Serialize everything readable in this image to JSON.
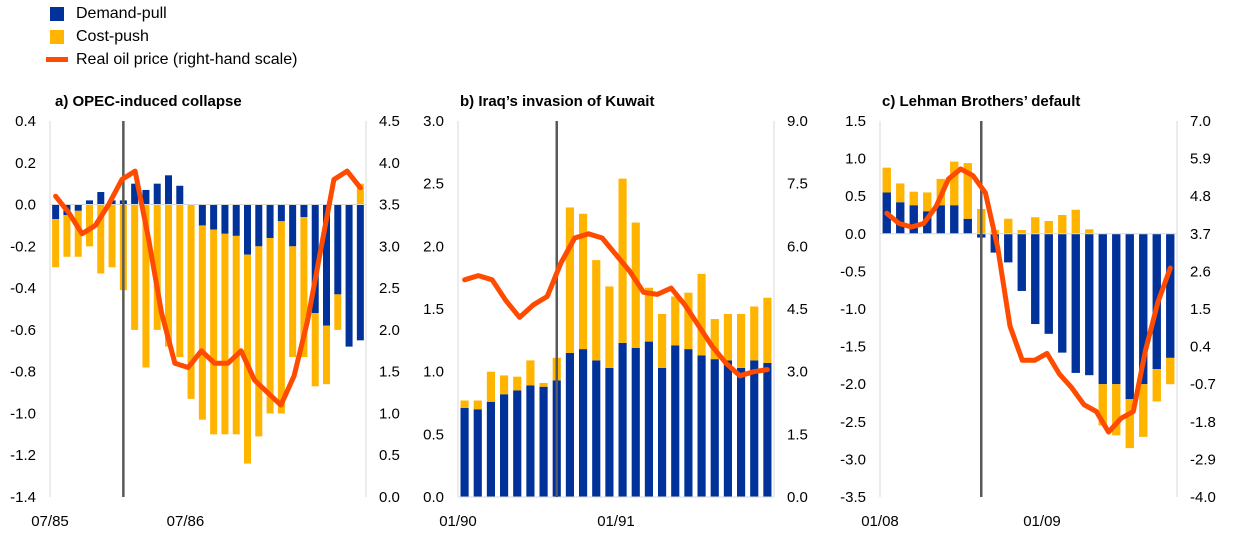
{
  "legend": {
    "items": [
      {
        "label": "Demand-pull",
        "color": "#003299",
        "kind": "bar"
      },
      {
        "label": "Cost-push",
        "color": "#FFB400",
        "kind": "bar"
      },
      {
        "label": "Real oil price (right-hand scale)",
        "color": "#FF4B00",
        "kind": "line"
      }
    ]
  },
  "colors": {
    "demand": "#003299",
    "cost": "#FFB400",
    "oil": "#FF4B00",
    "event_line": "#595959"
  },
  "chart_data": [
    {
      "type": "bar",
      "title": "a) OPEC-induced collapse",
      "ylim": [
        -1.4,
        0.4
      ],
      "yticks": [
        "0.4",
        "0.2",
        "0.0",
        "-0.2",
        "-0.4",
        "-0.6",
        "-0.8",
        "-1.0",
        "-1.2",
        "-1.4"
      ],
      "y2lim": [
        0.0,
        4.5
      ],
      "y2ticks": [
        "4.5",
        "4.0",
        "3.5",
        "3.0",
        "2.5",
        "2.0",
        "1.5",
        "1.0",
        "0.5",
        "0.0"
      ],
      "x_tick_labels": [
        {
          "label": "07/85",
          "index": 0
        },
        {
          "label": "07/86",
          "index": 12
        }
      ],
      "event_index": 6.5,
      "series": [
        {
          "name": "Demand-pull",
          "values": [
            -0.07,
            -0.05,
            -0.03,
            0.02,
            0.06,
            0.02,
            0.02,
            0.1,
            0.07,
            0.1,
            0.14,
            0.09,
            0.0,
            -0.1,
            -0.12,
            -0.14,
            -0.15,
            -0.24,
            -0.2,
            -0.16,
            -0.08,
            -0.2,
            -0.06,
            -0.52,
            -0.58,
            -0.43,
            -0.68,
            -0.65
          ]
        },
        {
          "name": "Cost-push",
          "values": [
            -0.23,
            -0.2,
            -0.22,
            -0.2,
            -0.33,
            -0.3,
            -0.41,
            -0.6,
            -0.78,
            -0.6,
            -0.68,
            -0.73,
            -0.93,
            -0.93,
            -0.98,
            -0.96,
            -0.95,
            -1.0,
            -0.91,
            -0.84,
            -0.92,
            -0.53,
            -0.67,
            -0.35,
            -0.28,
            -0.17,
            0.0,
            0.1
          ]
        },
        {
          "name": "Real oil price (right-hand scale)",
          "values": [
            3.6,
            3.4,
            3.15,
            3.25,
            3.5,
            3.8,
            3.9,
            3.1,
            2.2,
            1.6,
            1.55,
            1.75,
            1.6,
            1.6,
            1.75,
            1.4,
            1.25,
            1.1,
            1.45,
            2.1,
            2.95,
            3.8,
            3.9,
            3.7
          ]
        }
      ]
    },
    {
      "type": "bar",
      "title": "b) Iraq’s invasion of Kuwait",
      "ylim": [
        0.0,
        3.0
      ],
      "yticks": [
        "3.0",
        "2.5",
        "2.0",
        "1.5",
        "1.0",
        "0.5",
        "0.0"
      ],
      "y2lim": [
        0.0,
        9.0
      ],
      "y2ticks": [
        "9.0",
        "7.5",
        "6.0",
        "4.5",
        "3.0",
        "1.5",
        "0.0"
      ],
      "x_tick_labels": [
        {
          "label": "01/90",
          "index": 0
        },
        {
          "label": "01/91",
          "index": 12
        }
      ],
      "event_index": 7.5,
      "series": [
        {
          "name": "Demand-pull",
          "values": [
            0.71,
            0.7,
            0.76,
            0.82,
            0.85,
            0.89,
            0.88,
            0.93,
            1.15,
            1.18,
            1.09,
            1.03,
            1.23,
            1.19,
            1.24,
            1.03,
            1.21,
            1.18,
            1.13,
            1.1,
            1.09,
            1.03,
            1.09,
            1.07
          ]
        },
        {
          "name": "Cost-push",
          "values": [
            0.06,
            0.07,
            0.24,
            0.15,
            0.11,
            0.2,
            0.03,
            0.18,
            1.16,
            1.08,
            0.8,
            0.65,
            1.31,
            1.0,
            0.43,
            0.43,
            0.39,
            0.45,
            0.65,
            0.32,
            0.37,
            0.43,
            0.43,
            0.52
          ]
        },
        {
          "name": "Real oil price (right-hand scale)",
          "values": [
            5.2,
            5.3,
            5.2,
            4.7,
            4.3,
            4.6,
            4.8,
            5.6,
            6.2,
            6.3,
            6.2,
            5.8,
            5.4,
            4.9,
            4.85,
            5.0,
            4.6,
            4.1,
            3.6,
            3.2,
            2.9,
            3.0,
            3.05
          ]
        }
      ]
    },
    {
      "type": "bar",
      "title": "c) Lehman Brothers’ default",
      "ylim": [
        -3.5,
        1.5
      ],
      "yticks": [
        "1.5",
        "1.0",
        "0.5",
        "0.0",
        "-0.5",
        "-1.0",
        "-1.5",
        "-2.0",
        "-2.5",
        "-3.0",
        "-3.5"
      ],
      "y2lim": [
        -4.0,
        7.0
      ],
      "y2ticks": [
        "7.0",
        "5.9",
        "4.8",
        "3.7",
        "2.6",
        "1.5",
        "0.4",
        "-0.7",
        "-1.8",
        "-2.9",
        "-4.0"
      ],
      "x_tick_labels": [
        {
          "label": "01/08",
          "index": 0
        },
        {
          "label": "01/09",
          "index": 12
        }
      ],
      "event_index": 7.5,
      "series": [
        {
          "name": "Demand-pull",
          "values": [
            0.55,
            0.42,
            0.38,
            0.3,
            0.38,
            0.38,
            0.2,
            -0.05,
            -0.25,
            -0.38,
            -0.76,
            -1.2,
            -1.33,
            -1.58,
            -1.85,
            -1.88,
            -2.0,
            -2.0,
            -2.2,
            -2.0,
            -1.8,
            -1.65
          ]
        },
        {
          "name": "Cost-push",
          "values": [
            0.33,
            0.25,
            0.18,
            0.25,
            0.35,
            0.58,
            0.74,
            0.33,
            0.05,
            0.2,
            0.05,
            0.22,
            0.17,
            0.25,
            0.32,
            0.06,
            -0.55,
            -0.68,
            -0.65,
            -0.7,
            -0.43,
            -0.35
          ]
        },
        {
          "name": "Real oil price (right-hand scale)",
          "values": [
            4.3,
            4.0,
            3.9,
            4.0,
            4.5,
            5.3,
            5.6,
            5.4,
            4.9,
            3.3,
            1.0,
            0.0,
            0.0,
            0.2,
            -0.4,
            -0.8,
            -1.3,
            -1.5,
            -2.1,
            -1.7,
            -1.5,
            0.3,
            1.7,
            2.7
          ]
        }
      ]
    }
  ]
}
